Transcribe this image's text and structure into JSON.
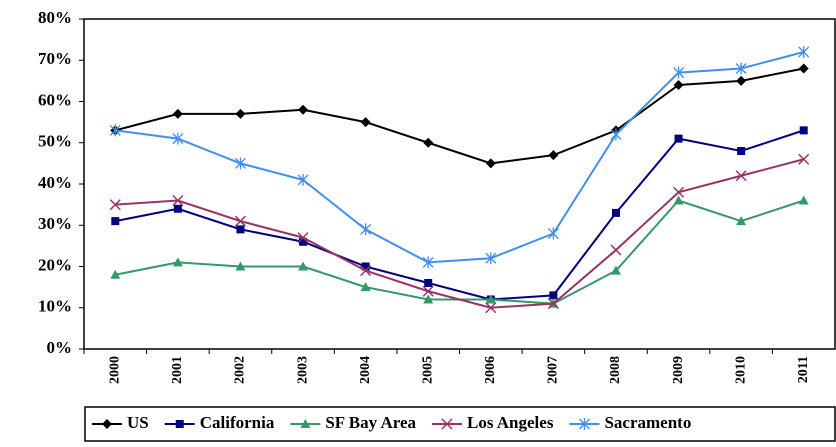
{
  "chart_data": {
    "type": "line",
    "categories": [
      "2000",
      "2001",
      "2002",
      "2003",
      "2004",
      "2005",
      "2006",
      "2007",
      "2008",
      "2009",
      "2010",
      "2011"
    ],
    "series": [
      {
        "name": "US",
        "color": "#000000",
        "marker": "diamond",
        "values": [
          53,
          57,
          57,
          58,
          55,
          50,
          45,
          47,
          53,
          64,
          65,
          68
        ]
      },
      {
        "name": "California",
        "color": "#000080",
        "marker": "square",
        "values": [
          31,
          34,
          29,
          26,
          20,
          16,
          12,
          13,
          33,
          51,
          48,
          53
        ]
      },
      {
        "name": "SF Bay Area",
        "color": "#339966",
        "marker": "triangle",
        "values": [
          18,
          21,
          20,
          20,
          15,
          12,
          12,
          11,
          19,
          36,
          31,
          36
        ]
      },
      {
        "name": "Los Angeles",
        "color": "#993366",
        "marker": "x",
        "values": [
          35,
          36,
          31,
          27,
          19,
          14,
          10,
          11,
          24,
          38,
          42,
          46
        ]
      },
      {
        "name": "Sacramento",
        "color": "#3f8fef",
        "marker": "asterisk",
        "values": [
          53,
          51,
          45,
          41,
          29,
          21,
          22,
          28,
          52,
          67,
          68,
          72
        ]
      }
    ],
    "ylim": [
      0,
      80
    ],
    "yticks": [
      {
        "value": 0,
        "label": "0%"
      },
      {
        "value": 10,
        "label": "10%"
      },
      {
        "value": 20,
        "label": "20%"
      },
      {
        "value": 30,
        "label": "30%"
      },
      {
        "value": 40,
        "label": "40%"
      },
      {
        "value": 50,
        "label": "50%"
      },
      {
        "value": 60,
        "label": "60%"
      },
      {
        "value": 70,
        "label": "70%"
      },
      {
        "value": 80,
        "label": "80%"
      }
    ],
    "grid": false,
    "legend": "bottom"
  }
}
